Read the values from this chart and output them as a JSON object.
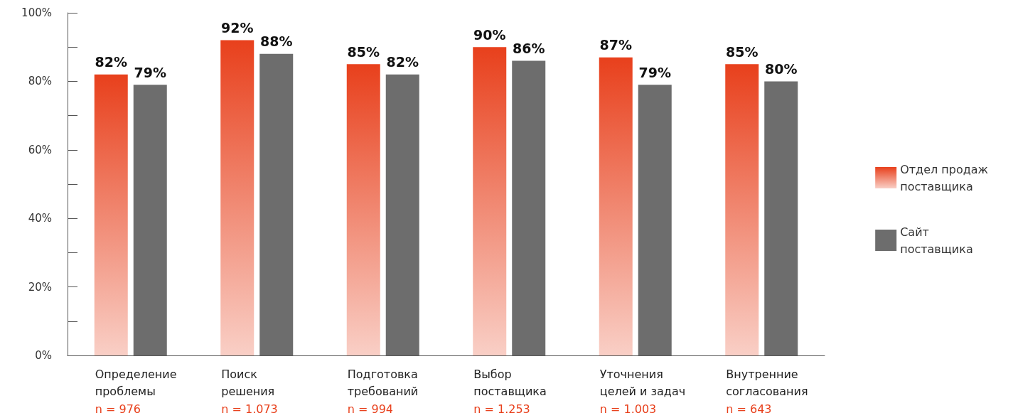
{
  "chart_data": {
    "type": "bar",
    "categories": [
      "Определение\nпроблемы",
      "Поиск\nрешения",
      "Подготовка\nтребований",
      "Выбор\nпоставщика",
      "Уточнения\nцелей и задач",
      "Внутренние\nсогласования"
    ],
    "series": [
      {
        "name": "Отдел продаж\nпоставщика",
        "color": "#e8401c",
        "values": [
          82,
          92,
          85,
          90,
          87,
          85
        ],
        "value_labels": [
          "82%",
          "92%",
          "85%",
          "90%",
          "87%",
          "85%"
        ]
      },
      {
        "name": "Сайт\nпоставщика",
        "color": "#6d6d6d",
        "values": [
          79,
          88,
          82,
          86,
          79,
          80
        ],
        "value_labels": [
          "79%",
          "88%",
          "82%",
          "86%",
          "79%",
          "80%"
        ]
      }
    ],
    "ylim": [
      0,
      100
    ],
    "yticks": [
      {
        "value": 0,
        "label": "0%"
      },
      {
        "value": 10,
        "label": null
      },
      {
        "value": 20,
        "label": "20%"
      },
      {
        "value": 30,
        "label": null
      },
      {
        "value": 40,
        "label": "40%"
      },
      {
        "value": 50,
        "label": null
      },
      {
        "value": 60,
        "label": "60%"
      },
      {
        "value": 70,
        "label": null
      },
      {
        "value": 80,
        "label": "80%"
      },
      {
        "value": 90,
        "label": null
      },
      {
        "value": 100,
        "label": "100%"
      }
    ],
    "annotations": [
      "n = 976",
      "n = 1.073",
      "n = 994",
      "n = 1.253",
      "n = 1.003",
      "n = 643"
    ],
    "grid": false,
    "legend": "right"
  }
}
